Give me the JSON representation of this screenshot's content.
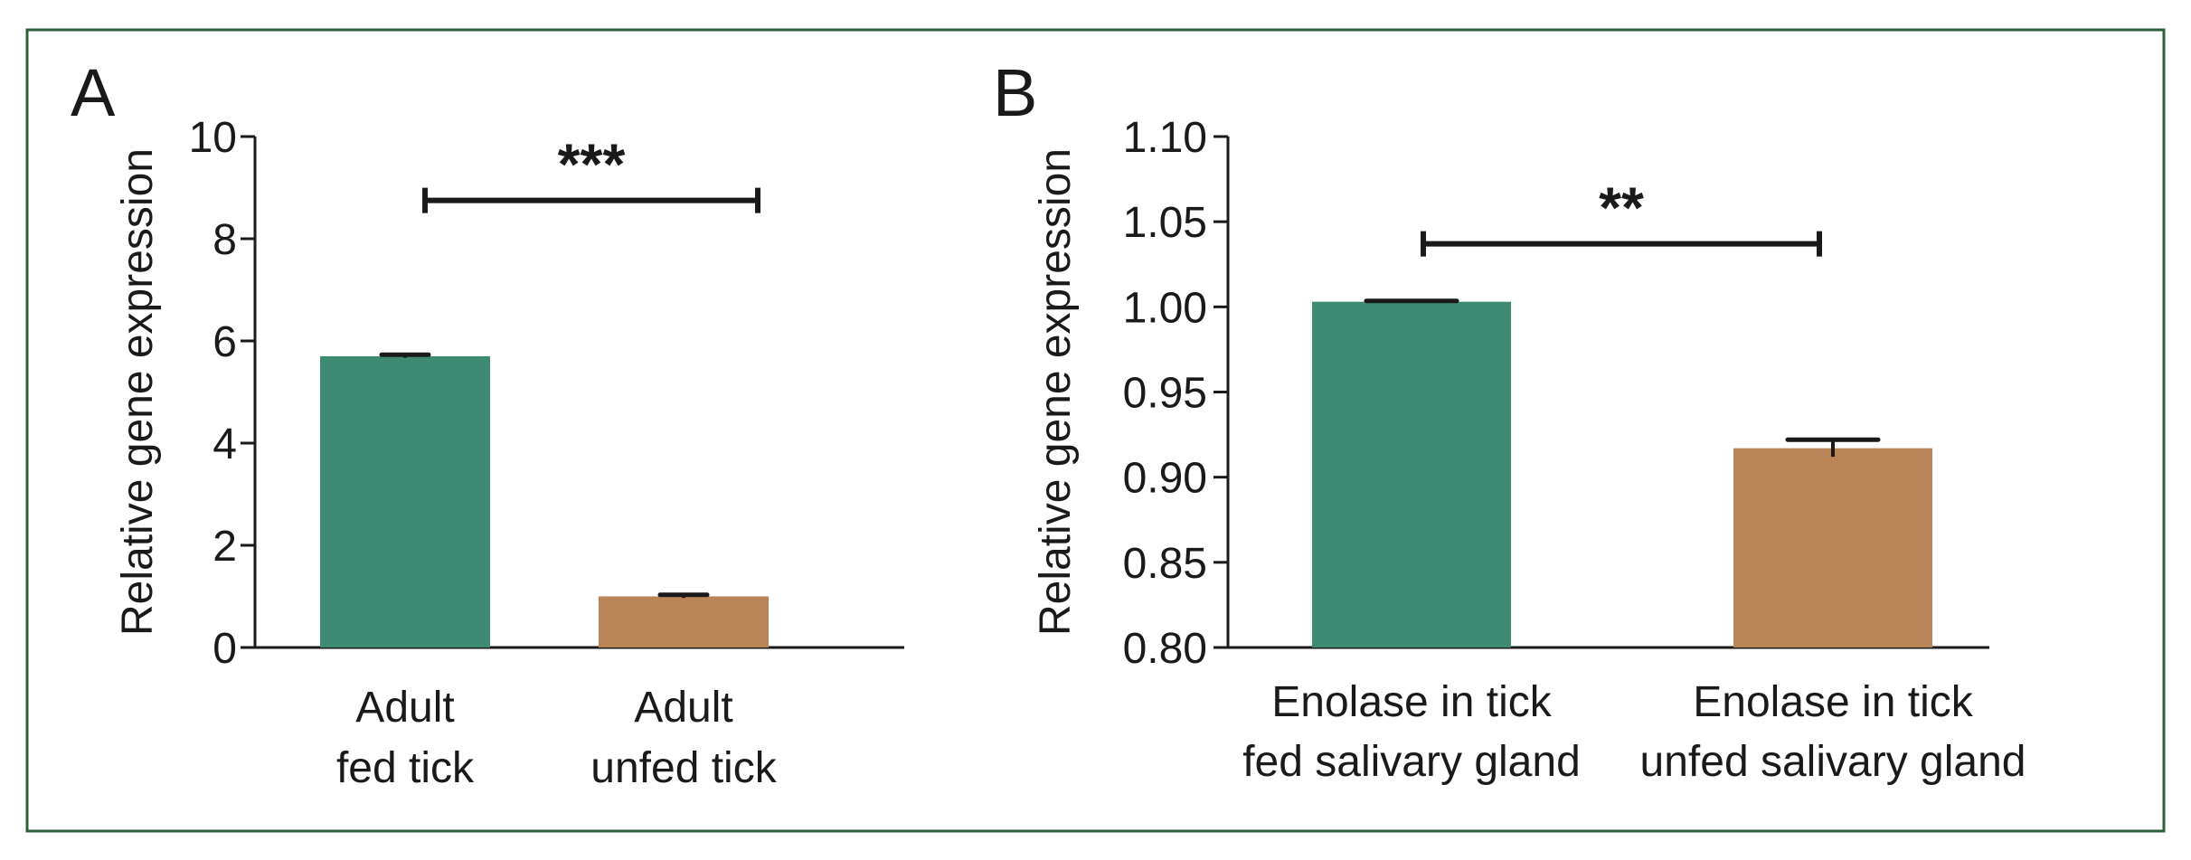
{
  "chart_data": [
    {
      "type": "bar",
      "panel": "A",
      "ylabel": "Relative gene expression",
      "ylim": [
        0,
        10
      ],
      "yticks": [
        "0",
        "2",
        "4",
        "6",
        "8",
        "10"
      ],
      "categories": [
        {
          "lines": [
            "Adult",
            "fed tick"
          ]
        },
        {
          "lines": [
            "Adult",
            "unfed tick"
          ]
        }
      ],
      "values": [
        5.7,
        1.0
      ],
      "errors": [
        0.03,
        0.03
      ],
      "colors": [
        "#3f8a73",
        "#b98557"
      ],
      "significance": {
        "label": "***",
        "y": 8.75
      }
    },
    {
      "type": "bar",
      "panel": "B",
      "ylabel": "Relative gene expression",
      "ylim": [
        0.8,
        1.1
      ],
      "yticks": [
        "0.80",
        "0.85",
        "0.90",
        "0.95",
        "1.00",
        "1.05",
        "1.10"
      ],
      "categories": [
        {
          "lines": [
            "Enolase in tick",
            "fed salivary gland"
          ]
        },
        {
          "lines": [
            "Enolase in tick",
            "unfed salivary gland"
          ]
        }
      ],
      "values": [
        1.003,
        0.917
      ],
      "errors": [
        0.0005,
        0.005
      ],
      "colors": [
        "#3f8a73",
        "#b98557"
      ],
      "significance": {
        "label": "**",
        "y": 1.037
      }
    }
  ],
  "style": {
    "frame_color": "#2f5e3f",
    "axis_color": "#1a1a1a"
  }
}
